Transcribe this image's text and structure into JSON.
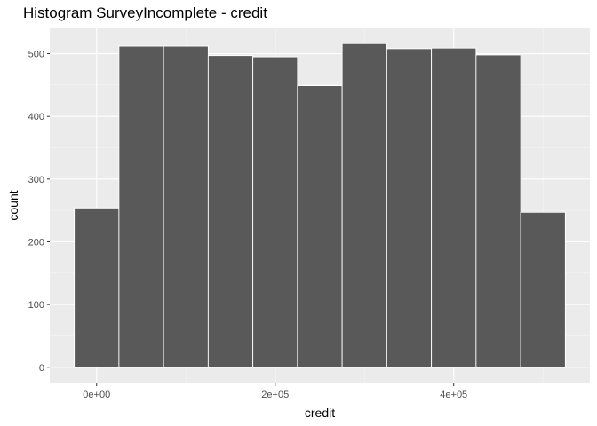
{
  "chart_data": {
    "type": "bar",
    "title": "Histogram SurveyIncomplete - credit",
    "xlabel": "credit",
    "ylabel": "count",
    "bins": [
      {
        "x0": -25000,
        "x1": 25000,
        "count": 254
      },
      {
        "x0": 25000,
        "x1": 75000,
        "count": 512
      },
      {
        "x0": 75000,
        "x1": 125000,
        "count": 512
      },
      {
        "x0": 125000,
        "x1": 175000,
        "count": 497
      },
      {
        "x0": 175000,
        "x1": 225000,
        "count": 495
      },
      {
        "x0": 225000,
        "x1": 275000,
        "count": 449
      },
      {
        "x0": 275000,
        "x1": 325000,
        "count": 516
      },
      {
        "x0": 325000,
        "x1": 375000,
        "count": 508
      },
      {
        "x0": 375000,
        "x1": 425000,
        "count": 509
      },
      {
        "x0": 425000,
        "x1": 475000,
        "count": 498
      },
      {
        "x0": 475000,
        "x1": 525000,
        "count": 247
      }
    ],
    "xlim": [
      -52500,
      552500
    ],
    "ylim": [
      -25.8,
      541.8
    ],
    "x_ticks": [
      {
        "value": 0,
        "label": "0e+00"
      },
      {
        "value": 200000,
        "label": "2e+05"
      },
      {
        "value": 400000,
        "label": "4e+05"
      }
    ],
    "y_ticks": [
      {
        "value": 0,
        "label": "0"
      },
      {
        "value": 100,
        "label": "100"
      },
      {
        "value": 200,
        "label": "200"
      },
      {
        "value": 300,
        "label": "300"
      },
      {
        "value": 400,
        "label": "400"
      },
      {
        "value": 500,
        "label": "500"
      }
    ],
    "grid": true,
    "colors": {
      "panel_background": "#ebebeb",
      "grid_major": "#ffffff",
      "grid_minor": "#f5f5f5",
      "bar_fill": "#595959",
      "bar_outline": "#ffffff"
    }
  }
}
